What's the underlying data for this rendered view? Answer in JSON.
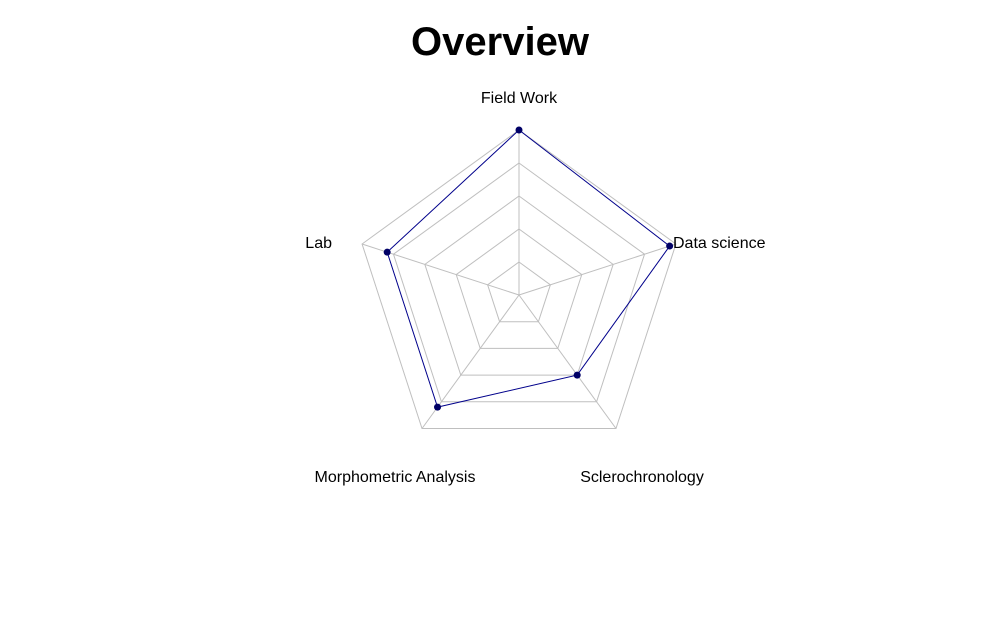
{
  "chart_data": {
    "type": "radar",
    "title": "Overview",
    "axes": [
      "Field Work",
      "Data science",
      "Sclerochronology",
      "Morphometric Analysis",
      "Lab"
    ],
    "range": [
      0,
      5
    ],
    "gridlines": 5,
    "series": [
      {
        "values": [
          5,
          4.8,
          3,
          4.2,
          4.2
        ]
      }
    ],
    "colors": {
      "series_line": "#00008b",
      "series_point": "#000066",
      "grid": "#bfbfbf"
    },
    "grid": true,
    "legend": "none"
  }
}
